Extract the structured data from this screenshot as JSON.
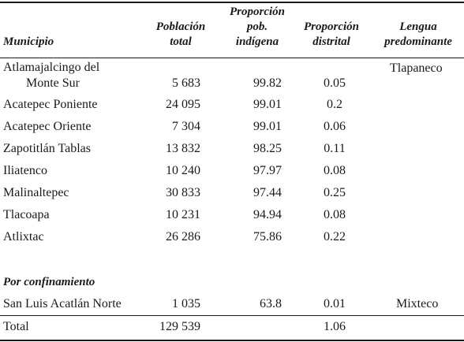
{
  "header": {
    "municipio": "Municipio",
    "poblacion": [
      "Población",
      "total"
    ],
    "prop_indigena": [
      "Proporción",
      "pob.",
      "indígena"
    ],
    "prop_distrital": [
      "Proporción",
      "distrital"
    ],
    "lengua": [
      "Lengua",
      "predominante"
    ]
  },
  "rows": [
    {
      "municipio": "Atlamajalcingo del",
      "municipio_cont": "Monte Sur",
      "poblacion": "5 683",
      "prop_indigena": "99.82",
      "prop_distrital": "0.05",
      "lengua": "Tlapaneco"
    },
    {
      "municipio": "Acatepec Poniente",
      "poblacion": "24 095",
      "prop_indigena": "99.01",
      "prop_distrital": "0.2",
      "lengua": ""
    },
    {
      "municipio": "Acatepec Oriente",
      "poblacion": "7 304",
      "prop_indigena": "99.01",
      "prop_distrital": "0.06",
      "lengua": ""
    },
    {
      "municipio": "Zapotitlán Tablas",
      "poblacion": "13 832",
      "prop_indigena": "98.25",
      "prop_distrital": "0.11",
      "lengua": ""
    },
    {
      "municipio": "Iliatenco",
      "poblacion": "10 240",
      "prop_indigena": "97.97",
      "prop_distrital": "0.08",
      "lengua": ""
    },
    {
      "municipio": "Malinaltepec",
      "poblacion": "30 833",
      "prop_indigena": "97.44",
      "prop_distrital": "0.25",
      "lengua": ""
    },
    {
      "municipio": "Tlacoapa",
      "poblacion": "10 231",
      "prop_indigena": "94.94",
      "prop_distrital": "0.08",
      "lengua": ""
    },
    {
      "municipio": "Atlixtac",
      "poblacion": "26 286",
      "prop_indigena": "75.86",
      "prop_distrital": "0.22",
      "lengua": ""
    }
  ],
  "section": {
    "label": "Por confinamiento"
  },
  "section_rows": [
    {
      "municipio": "San Luis Acatlán Norte",
      "poblacion": "1 035",
      "prop_indigena": "63.8",
      "prop_distrital": "0.01",
      "lengua": "Mixteco"
    }
  ],
  "total": {
    "label": "Total",
    "poblacion": "129 539",
    "prop_distrital": "1.06"
  }
}
